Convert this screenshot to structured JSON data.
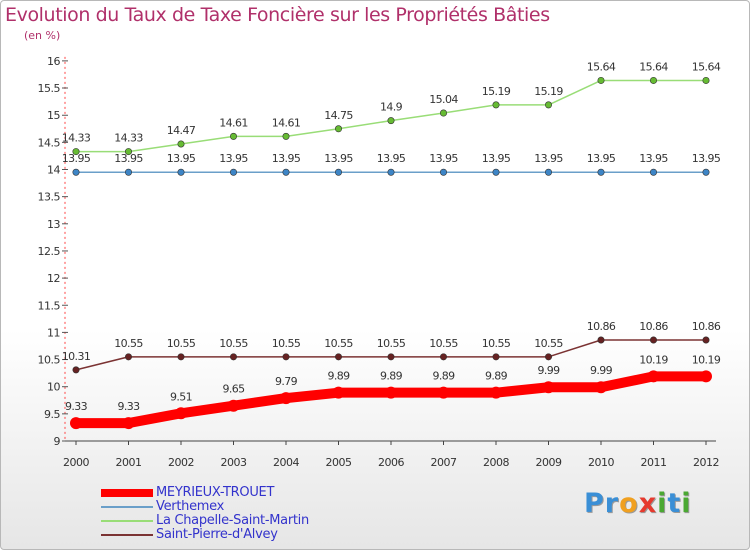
{
  "chart_data": {
    "type": "line",
    "title": "Evolution du Taux de Taxe Foncière sur les Propriétés Bâties",
    "ylabel": "(en %)",
    "xlabel": "",
    "x": [
      "2000",
      "2001",
      "2002",
      "2003",
      "2004",
      "2005",
      "2006",
      "2007",
      "2008",
      "2009",
      "2010",
      "2011",
      "2012"
    ],
    "ylim": [
      9,
      16
    ],
    "yticks": [
      "9",
      "9.5",
      "10",
      "10.5",
      "11",
      "11.5",
      "12",
      "12.5",
      "13",
      "13.5",
      "14",
      "14.5",
      "15",
      "15.5",
      "16"
    ],
    "grid": false,
    "legend_position": "bottom-left",
    "series": [
      {
        "name": "MEYRIEUX-TROUET",
        "color": "#ff0000",
        "marker": "#ff0000",
        "values": [
          9.33,
          9.33,
          9.51,
          9.65,
          9.79,
          9.89,
          9.89,
          9.89,
          9.89,
          9.99,
          9.99,
          10.19,
          10.19
        ],
        "labels": [
          "9.33",
          "9.33",
          "9.51",
          "9.65",
          "9.79",
          "9.89",
          "9.89",
          "9.89",
          "9.89",
          "9.99",
          "9.99",
          "10.19",
          "10.19"
        ]
      },
      {
        "name": "Verthemex",
        "color": "#6a9fc9",
        "marker": "#3d85c6",
        "values": [
          13.95,
          13.95,
          13.95,
          13.95,
          13.95,
          13.95,
          13.95,
          13.95,
          13.95,
          13.95,
          13.95,
          13.95,
          13.95
        ],
        "labels": [
          "13.95",
          "13.95",
          "13.95",
          "13.95",
          "13.95",
          "13.95",
          "13.95",
          "13.95",
          "13.95",
          "13.95",
          "13.95",
          "13.95",
          "13.95"
        ]
      },
      {
        "name": "La Chapelle-Saint-Martin",
        "color": "#99dd77",
        "marker": "#66bb33",
        "values": [
          14.33,
          14.33,
          14.47,
          14.61,
          14.61,
          14.75,
          14.9,
          15.04,
          15.19,
          15.19,
          15.64,
          15.64,
          15.64
        ],
        "labels": [
          "14.33",
          "14.33",
          "14.47",
          "14.61",
          "14.61",
          "14.75",
          "14.9",
          "15.04",
          "15.19",
          "15.19",
          "15.64",
          "15.64",
          "15.64"
        ]
      },
      {
        "name": "Saint-Pierre-d'Alvey",
        "color": "#7b3333",
        "marker": "#662222",
        "values": [
          10.31,
          10.55,
          10.55,
          10.55,
          10.55,
          10.55,
          10.55,
          10.55,
          10.55,
          10.55,
          10.86,
          10.86,
          10.86
        ],
        "labels": [
          "10.31",
          "10.55",
          "10.55",
          "10.55",
          "10.55",
          "10.55",
          "10.55",
          "10.55",
          "10.55",
          "10.55",
          "10.86",
          "10.86",
          "10.86"
        ]
      }
    ]
  },
  "logo": {
    "letters": [
      "P",
      "r",
      "o",
      "x",
      "i",
      "t",
      "i"
    ],
    "colors": [
      "#3a8fd6",
      "#3a8fd6",
      "#f0a020",
      "#e63a2e",
      "#4aa832",
      "#3a8fd6",
      "#4aa832"
    ]
  }
}
